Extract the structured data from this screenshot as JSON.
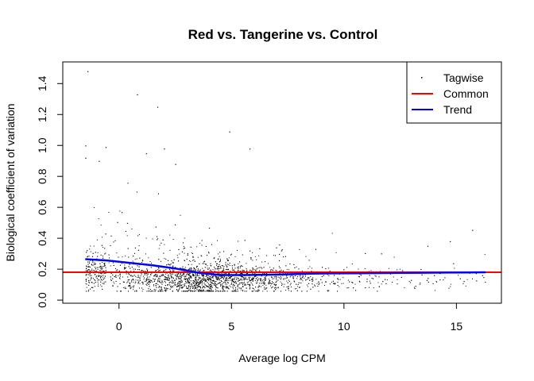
{
  "chart_data": {
    "type": "scatter",
    "title": "Red vs. Tangerine vs. Control",
    "xlabel": "Average log CPM",
    "ylabel": "Biological coefficient of variation",
    "xlim": [
      -2.5,
      17
    ],
    "ylim": [
      -0.02,
      1.54
    ],
    "xticks": [
      0,
      5,
      10,
      15
    ],
    "yticks": [
      0.0,
      0.2,
      0.4,
      0.6,
      0.8,
      1.0,
      1.2,
      1.4
    ],
    "grid": false,
    "legend_position": "top-right",
    "legend": [
      {
        "label": "Tagwise",
        "style": "points",
        "color": "#000000"
      },
      {
        "label": "Common",
        "style": "line",
        "color": "#ff0000"
      },
      {
        "label": "Trend",
        "style": "line",
        "color": "#0000ff"
      }
    ],
    "series": [
      {
        "name": "Tagwise",
        "kind": "points",
        "x_range": [
          -1.5,
          16.3
        ],
        "typical_y": 0.15,
        "outliers": [
          {
            "x": -1.4,
            "y": 1.48
          },
          {
            "x": 0.8,
            "y": 1.33
          },
          {
            "x": 1.7,
            "y": 1.25
          },
          {
            "x": 4.9,
            "y": 1.09
          },
          {
            "x": -1.5,
            "y": 1.0
          },
          {
            "x": -0.6,
            "y": 0.99
          },
          {
            "x": 2.0,
            "y": 0.98
          },
          {
            "x": 5.8,
            "y": 0.98
          },
          {
            "x": 1.2,
            "y": 0.95
          },
          {
            "x": -1.5,
            "y": 0.92
          },
          {
            "x": -0.9,
            "y": 0.9
          },
          {
            "x": 2.5,
            "y": 0.88
          }
        ]
      },
      {
        "name": "Common",
        "kind": "hline",
        "y": 0.18,
        "color": "#ff0000"
      },
      {
        "name": "Trend",
        "kind": "line",
        "color": "#0000ff",
        "x": [
          -1.5,
          -0.5,
          0.5,
          1.5,
          2.5,
          3.5,
          4.5,
          5.5,
          6.5,
          7.5,
          8.5,
          9.5,
          10.5,
          11.5,
          12.5,
          13.5,
          14.5,
          15.5,
          16.3
        ],
        "y": [
          0.265,
          0.256,
          0.24,
          0.225,
          0.205,
          0.178,
          0.162,
          0.162,
          0.164,
          0.167,
          0.171,
          0.173,
          0.174,
          0.175,
          0.176,
          0.177,
          0.178,
          0.179,
          0.18
        ]
      }
    ]
  }
}
